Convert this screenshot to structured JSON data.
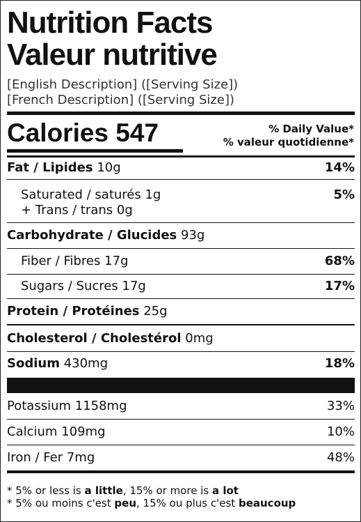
{
  "title_en": "Nutrition Facts",
  "title_fr": "Valeur nutritive",
  "description": [
    "[English Description] ([Serving Size])",
    "[French Description] ([Serving Size])"
  ],
  "calories": {
    "label": "Calories",
    "value": "547"
  },
  "dv_header": [
    "% Daily Value*",
    "% valeur quotidienne*"
  ],
  "nutrients": [
    {
      "name": "Fat / Lipides",
      "amount": "10g",
      "dv": "14%"
    },
    {
      "name": "Saturated / saturés",
      "amount": "1g",
      "extra": "+ Trans / trans 0g",
      "dv": "5%"
    },
    {
      "name": "Carbohydrate / Glucides",
      "amount": "93g"
    },
    {
      "name": "Fiber / Fibres",
      "amount": "17g",
      "dv": "68%"
    },
    {
      "name": "Sugars / Sucres",
      "amount": "17g",
      "dv": "17%"
    },
    {
      "name": "Protein / Protéines",
      "amount": "25g"
    },
    {
      "name": "Cholesterol / Cholestérol",
      "amount": "0mg"
    },
    {
      "name": "Sodium",
      "amount": "430mg",
      "dv": "18%"
    }
  ],
  "minerals": [
    {
      "name": "Potassium",
      "amount": "1158mg",
      "dv": "33%"
    },
    {
      "name": "Calcium",
      "amount": "109mg",
      "dv": "10%"
    },
    {
      "name": "Iron / Fer",
      "amount": "7mg",
      "dv": "48%"
    }
  ],
  "footnote": [
    [
      "* 5% or less is",
      "a little",
      ", 15% or more is",
      "a lot"
    ],
    [
      "* 5% ou moins c'est",
      "peu",
      ", 15% ou plus c'est",
      "beaucoup"
    ]
  ]
}
